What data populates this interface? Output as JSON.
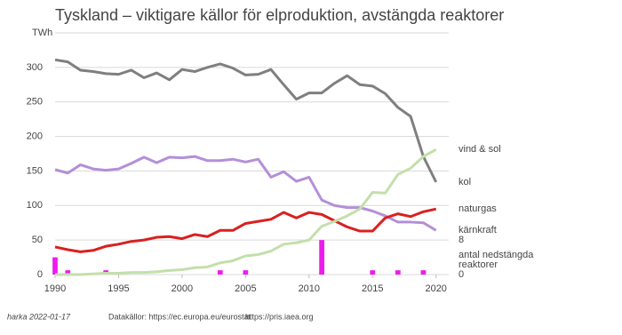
{
  "chart_data": {
    "type": "line",
    "title": "Tyskland – viktigare källor för elproduktion, avstängda reaktorer",
    "x": [
      1990,
      1991,
      1992,
      1993,
      1994,
      1995,
      1996,
      1997,
      1998,
      1999,
      2000,
      2001,
      2002,
      2003,
      2004,
      2005,
      2006,
      2007,
      2008,
      2009,
      2010,
      2011,
      2012,
      2013,
      2014,
      2015,
      2016,
      2017,
      2018,
      2019,
      2020
    ],
    "xlim": [
      1990,
      2021
    ],
    "xticks": [
      1990,
      1995,
      2000,
      2005,
      2010,
      2015,
      2020
    ],
    "ylim": [
      0,
      350
    ],
    "yticks": [
      0,
      50,
      100,
      150,
      200,
      250,
      300,
      {
        "value": 350,
        "label": "TWh"
      }
    ],
    "y2lim": [
      0,
      56
    ],
    "y2ticks": [
      0,
      8
    ],
    "grid": true,
    "series": [
      {
        "name": "kol",
        "color": "#7f7f7f",
        "values": [
          311,
          308,
          296,
          294,
          291,
          290,
          296,
          285,
          292,
          282,
          297,
          294,
          300,
          305,
          299,
          289,
          290,
          297,
          275,
          254,
          263,
          263,
          277,
          288,
          275,
          273,
          262,
          242,
          229,
          171,
          134
        ]
      },
      {
        "name": "kärnkraft",
        "color": "#b48fd8",
        "values": [
          152,
          147,
          159,
          153,
          151,
          153,
          161,
          170,
          162,
          170,
          169,
          171,
          165,
          165,
          167,
          163,
          167,
          141,
          149,
          135,
          141,
          108,
          100,
          97,
          97,
          92,
          85,
          76,
          76,
          75,
          64
        ]
      },
      {
        "name": "naturgas",
        "color": "#d92020",
        "values": [
          40,
          36,
          33,
          35,
          41,
          44,
          48,
          50,
          54,
          55,
          52,
          58,
          55,
          64,
          64,
          74,
          77,
          80,
          90,
          82,
          90,
          87,
          78,
          69,
          63,
          63,
          82,
          88,
          84,
          91,
          95
        ]
      },
      {
        "name": "vind & sol",
        "color": "#c3dfaa",
        "values": [
          0,
          0,
          0,
          1,
          2,
          2,
          3,
          3,
          4,
          6,
          7,
          10,
          11,
          17,
          20,
          27,
          29,
          34,
          44,
          46,
          50,
          70,
          77,
          85,
          95,
          119,
          118,
          145,
          154,
          171,
          181
        ]
      },
      {
        "name": "antal nedstängda reaktorer",
        "type": "bar",
        "axis": "y2",
        "color": "#ee1aee",
        "values": [
          4,
          1,
          0,
          0,
          1,
          0,
          0,
          0,
          0,
          0,
          0,
          0,
          0,
          1,
          0,
          1,
          0,
          0,
          0,
          0,
          0,
          8,
          0,
          0,
          0,
          1,
          0,
          1,
          0,
          1,
          0
        ]
      }
    ],
    "annotation_lines": [
      "antal nedstängda",
      "reaktorer"
    ],
    "footer": {
      "author": "harka 2022-01-17",
      "source1": "Datakällor: https://ec.europa.eu/eurostat",
      "source2": "https://pris.iaea.org"
    }
  }
}
